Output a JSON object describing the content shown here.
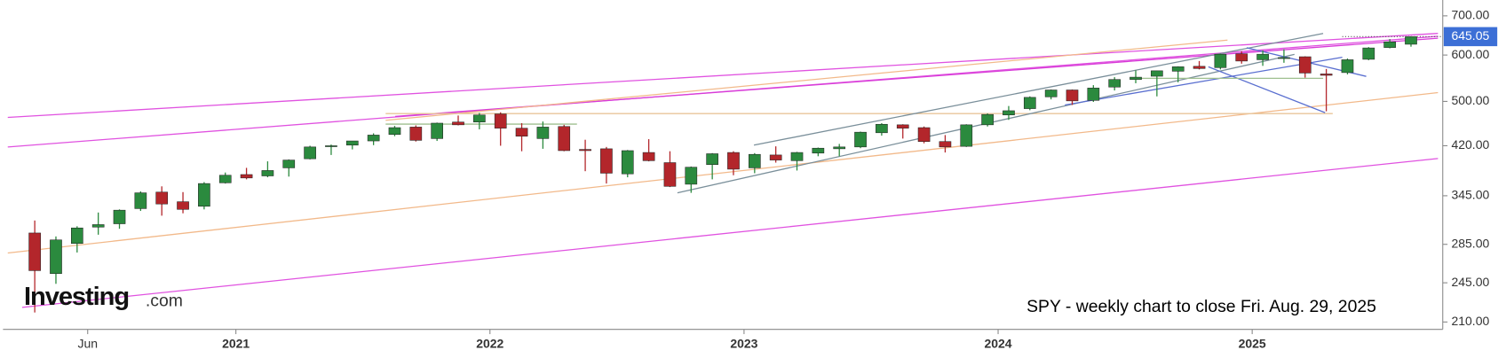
{
  "chart_data": {
    "type": "candlestick",
    "annotation": "SPY - weekly chart to close Fri. Aug. 29, 2025",
    "logo": {
      "name": "Investing",
      "suffix": ".com"
    },
    "log_scale": true,
    "up_color": "#2b8a3e",
    "down_color": "#b3262b",
    "last_price": 645.05,
    "last_price_color": "#3c6fd6",
    "x": [
      "2020-03",
      "2020-04",
      "2020-05",
      "2020-06",
      "2020-07",
      "2020-08",
      "2020-09",
      "2020-10",
      "2020-11",
      "2020-12",
      "2021-01",
      "2021-02",
      "2021-03",
      "2021-04",
      "2021-05",
      "2021-06",
      "2021-07",
      "2021-08",
      "2021-09",
      "2021-10",
      "2021-11",
      "2021-12",
      "2022-01",
      "2022-02",
      "2022-03",
      "2022-04",
      "2022-05",
      "2022-06",
      "2022-07",
      "2022-08",
      "2022-09",
      "2022-10",
      "2022-11",
      "2022-12",
      "2023-01",
      "2023-02",
      "2023-03",
      "2023-04",
      "2023-05",
      "2023-06",
      "2023-07",
      "2023-08",
      "2023-09",
      "2023-10",
      "2023-11",
      "2023-12",
      "2024-01",
      "2024-02",
      "2024-03",
      "2024-04",
      "2024-05",
      "2024-06",
      "2024-07",
      "2024-08",
      "2024-09",
      "2024-10",
      "2024-11",
      "2024-12",
      "2025-01",
      "2025-02",
      "2025-03",
      "2025-04",
      "2025-05",
      "2025-06",
      "2025-07",
      "2025-08"
    ],
    "open": [
      298,
      254,
      286,
      305,
      309,
      328,
      350,
      337,
      331,
      363,
      375,
      373,
      385,
      399,
      419,
      421,
      428,
      439,
      452,
      432,
      461,
      461,
      476,
      450,
      432,
      453,
      414,
      415,
      376,
      409,
      393,
      361,
      390,
      409,
      385,
      405,
      396,
      408,
      415,
      418,
      442,
      456,
      451,
      427,
      419,
      456,
      474,
      486,
      509,
      523,
      502,
      529,
      545,
      552,
      563,
      574,
      571,
      603,
      589,
      592,
      596,
      557,
      560,
      590,
      618,
      626
    ],
    "high": [
      313,
      294,
      306,
      323,
      327,
      351,
      358,
      350,
      364,
      378,
      385,
      395,
      398,
      420,
      422,
      428,
      441,
      454,
      455,
      460,
      473,
      478,
      479,
      459,
      462,
      456,
      430,
      418,
      413,
      431,
      411,
      387,
      408,
      411,
      408,
      419,
      410,
      417,
      423,
      444,
      459,
      457,
      453,
      438,
      457,
      477,
      491,
      510,
      524,
      524,
      533,
      550,
      565,
      564,
      574,
      586,
      603,
      609,
      611,
      614,
      597,
      568,
      592,
      619,
      639,
      646
    ],
    "low": [
      218,
      244,
      276,
      296,
      303,
      325,
      319,
      322,
      327,
      362,
      368,
      371,
      372,
      398,
      405,
      414,
      421,
      436,
      427,
      428,
      455,
      448,
      420,
      411,
      415,
      411,
      380,
      362,
      371,
      395,
      357,
      349,
      368,
      374,
      377,
      393,
      381,
      403,
      403,
      416,
      437,
      432,
      424,
      409,
      418,
      453,
      465,
      483,
      504,
      493,
      499,
      522,
      537,
      510,
      539,
      567,
      567,
      580,
      575,
      582,
      549,
      481,
      556,
      588,
      616,
      620
    ],
    "close": [
      257,
      290,
      304,
      308,
      326,
      349,
      334,
      327,
      362,
      374,
      370,
      381,
      397,
      418,
      420,
      428,
      438,
      451,
      429,
      459,
      456,
      474,
      450,
      436,
      452,
      412,
      412,
      377,
      412,
      396,
      358,
      386,
      407,
      383,
      406,
      397,
      409,
      416,
      418,
      443,
      457,
      450,
      427,
      418,
      456,
      475,
      482,
      508,
      523,
      501,
      527,
      545,
      550,
      564,
      573,
      569,
      602,
      586,
      602,
      594,
      559,
      554,
      589,
      617,
      632,
      645
    ],
    "xlim": [
      "2020-02",
      "2025-10"
    ],
    "xticks": [
      {
        "value": "2020-06",
        "label": "Jun"
      },
      {
        "value": "2021-01",
        "label": "2021"
      },
      {
        "value": "2022-01",
        "label": "2022"
      },
      {
        "value": "2023-01",
        "label": "2023"
      },
      {
        "value": "2024-01",
        "label": "2024"
      },
      {
        "value": "2025-01",
        "label": "2025"
      }
    ],
    "ylim": [
      204,
      745
    ],
    "yticks": [
      {
        "value": 210,
        "label": "210.00"
      },
      {
        "value": 245,
        "label": "245.00"
      },
      {
        "value": 285,
        "label": "285.00"
      },
      {
        "value": 345,
        "label": "345.00"
      },
      {
        "value": 420,
        "label": "420.00"
      },
      {
        "value": 500,
        "label": "500.00"
      },
      {
        "value": 600,
        "label": "600.00"
      },
      {
        "value": 700,
        "label": "700.00"
      }
    ]
  }
}
